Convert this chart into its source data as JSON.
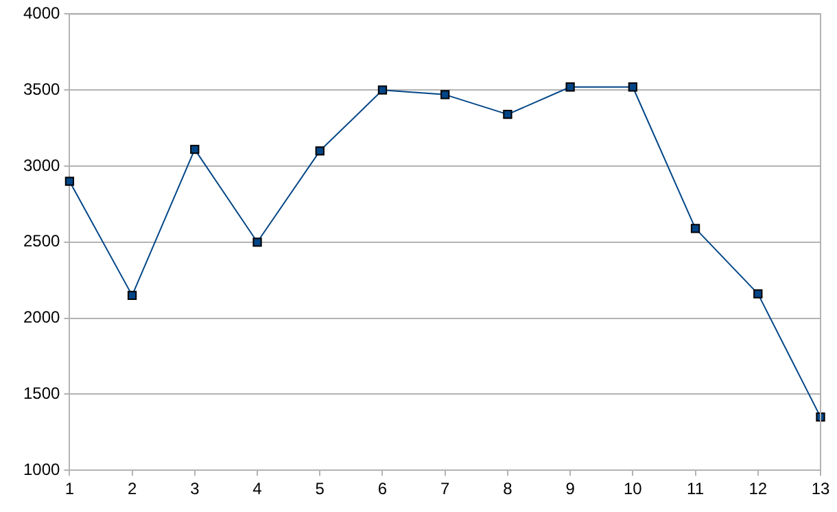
{
  "chart_data": {
    "type": "line",
    "x": [
      1,
      2,
      3,
      4,
      5,
      6,
      7,
      8,
      9,
      10,
      11,
      12,
      13
    ],
    "series": [
      {
        "color": "#004586",
        "values": [
          2900,
          2150,
          3110,
          2500,
          3100,
          3500,
          3470,
          3340,
          3520,
          3520,
          2590,
          2160,
          1350
        ]
      }
    ],
    "xlim": [
      1,
      13
    ],
    "xticks": [
      1,
      2,
      3,
      4,
      5,
      6,
      7,
      8,
      9,
      10,
      11,
      12,
      13
    ],
    "ylim": [
      1000,
      4000
    ],
    "yticks": [
      1000,
      1500,
      2000,
      2500,
      3000,
      3500,
      4000
    ],
    "grid": "y",
    "legend": false,
    "marker": "square",
    "line_style": "solid"
  }
}
